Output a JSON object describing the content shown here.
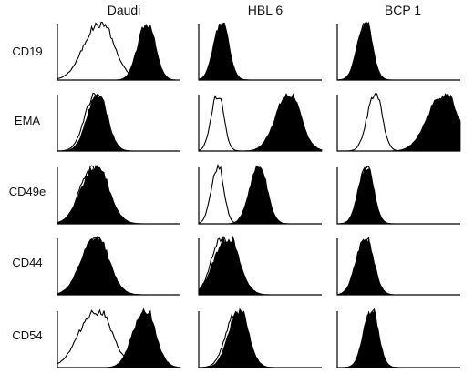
{
  "columns": [
    "Daudi",
    "HBL 6",
    "BCP 1"
  ],
  "rows": [
    "CD19",
    "EMA",
    "CD49e",
    "CD44",
    "CD54"
  ],
  "chart_data": {
    "type": "histogram-grid",
    "panel_x_range": [
      0,
      1
    ],
    "panels": [
      {
        "row": "CD19",
        "col": "Daudi",
        "isotype_peak": 0.33,
        "isotype_width": 0.12,
        "stained_peak": 0.72,
        "stained_width": 0.07
      },
      {
        "row": "CD19",
        "col": "HBL 6",
        "isotype_peak": 0.18,
        "isotype_width": 0.06,
        "stained_peak": 0.18,
        "stained_width": 0.06
      },
      {
        "row": "CD19",
        "col": "BCP 1",
        "isotype_peak": 0.22,
        "isotype_width": 0.06,
        "stained_peak": 0.22,
        "stained_width": 0.06
      },
      {
        "row": "EMA",
        "col": "Daudi",
        "isotype_peak": 0.3,
        "isotype_width": 0.08,
        "stained_peak": 0.32,
        "stained_width": 0.08
      },
      {
        "row": "EMA",
        "col": "HBL 6",
        "isotype_peak": 0.15,
        "isotype_width": 0.05,
        "stained_peak": 0.72,
        "stained_width": 0.1
      },
      {
        "row": "EMA",
        "col": "BCP 1",
        "isotype_peak": 0.3,
        "isotype_width": 0.06,
        "stained_peak": 0.85,
        "stained_width": 0.12
      },
      {
        "row": "CD49e",
        "col": "Daudi",
        "isotype_peak": 0.28,
        "isotype_width": 0.1,
        "stained_peak": 0.3,
        "stained_width": 0.11
      },
      {
        "row": "CD49e",
        "col": "HBL 6",
        "isotype_peak": 0.15,
        "isotype_width": 0.05,
        "stained_peak": 0.48,
        "stained_width": 0.07
      },
      {
        "row": "CD49e",
        "col": "BCP 1",
        "isotype_peak": 0.23,
        "isotype_width": 0.06,
        "stained_peak": 0.23,
        "stained_width": 0.06
      },
      {
        "row": "CD44",
        "col": "Daudi",
        "isotype_peak": 0.3,
        "isotype_width": 0.1,
        "stained_peak": 0.3,
        "stained_width": 0.11
      },
      {
        "row": "CD44",
        "col": "HBL 6",
        "isotype_peak": 0.18,
        "isotype_width": 0.08,
        "stained_peak": 0.22,
        "stained_width": 0.1
      },
      {
        "row": "CD44",
        "col": "BCP 1",
        "isotype_peak": 0.22,
        "isotype_width": 0.06,
        "stained_peak": 0.22,
        "stained_width": 0.07
      },
      {
        "row": "CD54",
        "col": "Daudi",
        "isotype_peak": 0.3,
        "isotype_width": 0.13,
        "stained_peak": 0.7,
        "stained_width": 0.09
      },
      {
        "row": "CD54",
        "col": "HBL 6",
        "isotype_peak": 0.3,
        "isotype_width": 0.08,
        "stained_peak": 0.32,
        "stained_width": 0.08
      },
      {
        "row": "CD54",
        "col": "BCP 1",
        "isotype_peak": 0.27,
        "isotype_width": 0.06,
        "stained_peak": 0.27,
        "stained_width": 0.06
      }
    ]
  }
}
